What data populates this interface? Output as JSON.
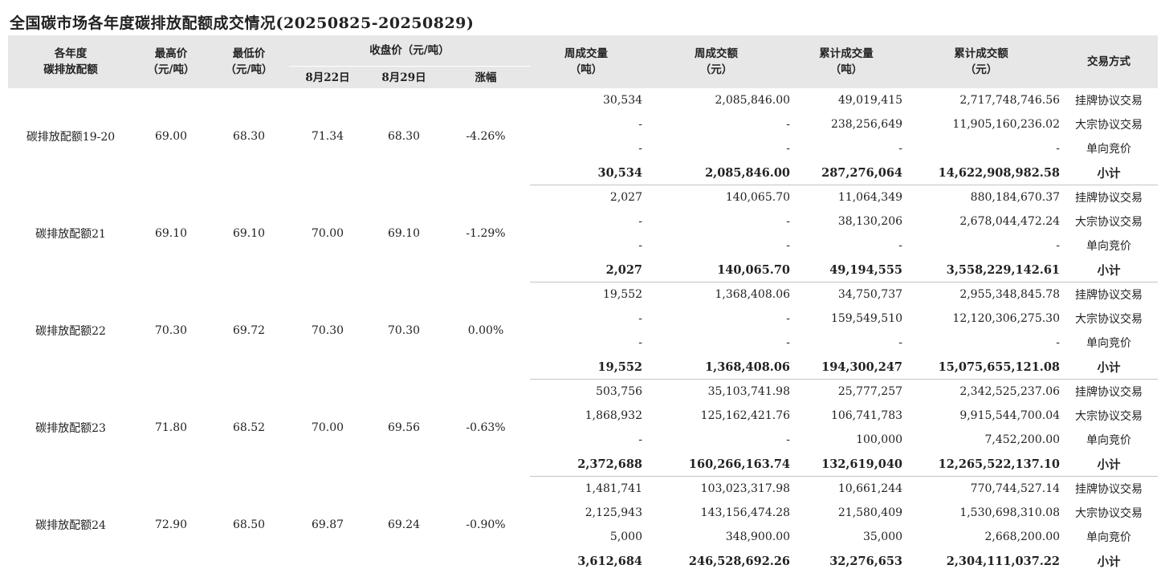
{
  "title": "全国碳市场各年度碳排放配额成交情况(20250825-20250829)",
  "headers": {
    "allowance": [
      "各年度",
      "碳排放配额"
    ],
    "high": [
      "最高价",
      "（元/吨）"
    ],
    "low": [
      "最低价",
      "（元/吨）"
    ],
    "close_group": "收盘价（元/吨）",
    "close_d1": "8月22日",
    "close_d2": "8月29日",
    "change": "涨幅",
    "week_vol": [
      "周成交量",
      "（吨）"
    ],
    "week_amt": [
      "周成交额",
      "（元）"
    ],
    "cum_vol": [
      "累计成交量",
      "（吨）"
    ],
    "cum_amt": [
      "累计成交额",
      "（元）"
    ],
    "mode": "交易方式"
  },
  "groups": [
    {
      "name": "碳排放配额19-20",
      "high": "69.00",
      "low": "68.30",
      "close_d1": "71.34",
      "close_d2": "68.30",
      "change": "-4.26%",
      "rows": [
        {
          "week_vol": "30,534",
          "week_amt": "2,085,846.00",
          "cum_vol": "49,019,415",
          "cum_amt": "2,717,748,746.56",
          "mode": "挂牌协议交易"
        },
        {
          "week_vol": "-",
          "week_amt": "-",
          "cum_vol": "238,256,649",
          "cum_amt": "11,905,160,236.02",
          "mode": "大宗协议交易"
        },
        {
          "week_vol": "-",
          "week_amt": "-",
          "cum_vol": "-",
          "cum_amt": "-",
          "mode": "单向竞价"
        },
        {
          "week_vol": "30,534",
          "week_amt": "2,085,846.00",
          "cum_vol": "287,276,064",
          "cum_amt": "14,622,908,982.58",
          "mode": "小计"
        }
      ]
    },
    {
      "name": "碳排放配额21",
      "high": "69.10",
      "low": "69.10",
      "close_d1": "70.00",
      "close_d2": "69.10",
      "change": "-1.29%",
      "rows": [
        {
          "week_vol": "2,027",
          "week_amt": "140,065.70",
          "cum_vol": "11,064,349",
          "cum_amt": "880,184,670.37",
          "mode": "挂牌协议交易"
        },
        {
          "week_vol": "-",
          "week_amt": "-",
          "cum_vol": "38,130,206",
          "cum_amt": "2,678,044,472.24",
          "mode": "大宗协议交易"
        },
        {
          "week_vol": "-",
          "week_amt": "-",
          "cum_vol": "-",
          "cum_amt": "-",
          "mode": "单向竞价"
        },
        {
          "week_vol": "2,027",
          "week_amt": "140,065.70",
          "cum_vol": "49,194,555",
          "cum_amt": "3,558,229,142.61",
          "mode": "小计"
        }
      ]
    },
    {
      "name": "碳排放配额22",
      "high": "70.30",
      "low": "69.72",
      "close_d1": "70.30",
      "close_d2": "70.30",
      "change": "0.00%",
      "rows": [
        {
          "week_vol": "19,552",
          "week_amt": "1,368,408.06",
          "cum_vol": "34,750,737",
          "cum_amt": "2,955,348,845.78",
          "mode": "挂牌协议交易"
        },
        {
          "week_vol": "-",
          "week_amt": "-",
          "cum_vol": "159,549,510",
          "cum_amt": "12,120,306,275.30",
          "mode": "大宗协议交易"
        },
        {
          "week_vol": "-",
          "week_amt": "-",
          "cum_vol": "-",
          "cum_amt": "-",
          "mode": "单向竞价"
        },
        {
          "week_vol": "19,552",
          "week_amt": "1,368,408.06",
          "cum_vol": "194,300,247",
          "cum_amt": "15,075,655,121.08",
          "mode": "小计"
        }
      ]
    },
    {
      "name": "碳排放配额23",
      "high": "71.80",
      "low": "68.52",
      "close_d1": "70.00",
      "close_d2": "69.56",
      "change": "-0.63%",
      "rows": [
        {
          "week_vol": "503,756",
          "week_amt": "35,103,741.98",
          "cum_vol": "25,777,257",
          "cum_amt": "2,342,525,237.06",
          "mode": "挂牌协议交易"
        },
        {
          "week_vol": "1,868,932",
          "week_amt": "125,162,421.76",
          "cum_vol": "106,741,783",
          "cum_amt": "9,915,544,700.04",
          "mode": "大宗协议交易"
        },
        {
          "week_vol": "-",
          "week_amt": "-",
          "cum_vol": "100,000",
          "cum_amt": "7,452,200.00",
          "mode": "单向竞价"
        },
        {
          "week_vol": "2,372,688",
          "week_amt": "160,266,163.74",
          "cum_vol": "132,619,040",
          "cum_amt": "12,265,522,137.10",
          "mode": "小计"
        }
      ]
    },
    {
      "name": "碳排放配额24",
      "high": "72.90",
      "low": "68.50",
      "close_d1": "69.87",
      "close_d2": "69.24",
      "change": "-0.90%",
      "rows": [
        {
          "week_vol": "1,481,741",
          "week_amt": "103,023,317.98",
          "cum_vol": "10,661,244",
          "cum_amt": "770,744,527.14",
          "mode": "挂牌协议交易"
        },
        {
          "week_vol": "2,125,943",
          "week_amt": "143,156,474.28",
          "cum_vol": "21,580,409",
          "cum_amt": "1,530,698,310.08",
          "mode": "大宗协议交易"
        },
        {
          "week_vol": "5,000",
          "week_amt": "348,900.00",
          "cum_vol": "35,000",
          "cum_amt": "2,668,200.00",
          "mode": "单向竞价"
        },
        {
          "week_vol": "3,612,684",
          "week_amt": "246,528,692.26",
          "cum_vol": "32,276,653",
          "cum_amt": "2,304,111,037.22",
          "mode": "小计"
        }
      ]
    }
  ]
}
